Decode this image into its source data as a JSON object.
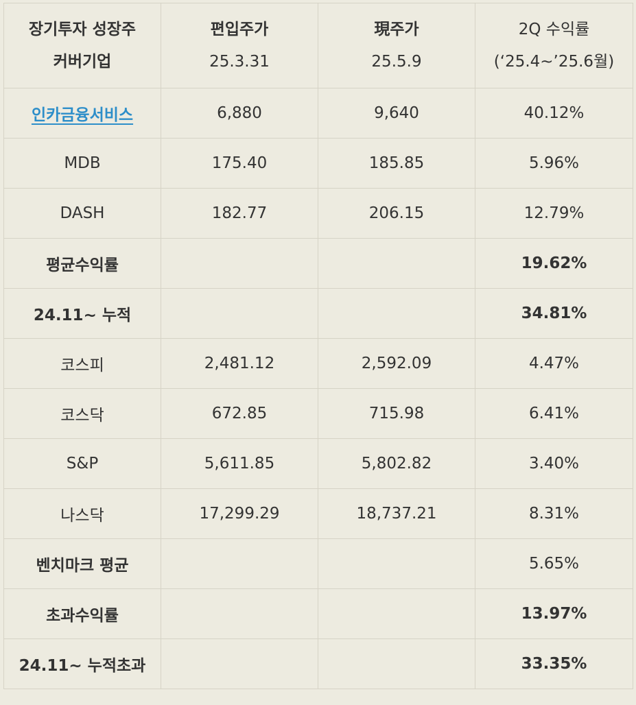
{
  "table": {
    "header": {
      "col1_line1": "장기투자 성장주",
      "col1_line2": "커버기업",
      "col2_line1": "편입주가",
      "col2_line2": "25.3.31",
      "col3_line1": "現주가",
      "col3_line2": "25.5.9",
      "col4_line1": "2Q 수익률",
      "col4_line2": "(‘25.4~’25.6월)"
    },
    "rows": [
      {
        "name": "인카금융서비스",
        "entry": "6,880",
        "current": "9,640",
        "return": "40.12%"
      },
      {
        "name": "MDB",
        "entry": "175.40",
        "current": "185.85",
        "return": "5.96%"
      },
      {
        "name": "DASH",
        "entry": "182.77",
        "current": "206.15",
        "return": "12.79%"
      },
      {
        "name": "평균수익률",
        "entry": "",
        "current": "",
        "return": "19.62%"
      },
      {
        "name": "24.11~ 누적",
        "entry": "",
        "current": "",
        "return": "34.81%"
      },
      {
        "name": "코스피",
        "entry": "2,481.12",
        "current": "2,592.09",
        "return": "4.47%"
      },
      {
        "name": "코스닥",
        "entry": "672.85",
        "current": "715.98",
        "return": "6.41%"
      },
      {
        "name": "S&P",
        "entry": "5,611.85",
        "current": "5,802.82",
        "return": "3.40%"
      },
      {
        "name": "나스닥",
        "entry": "17,299.29",
        "current": "18,737.21",
        "return": "8.31%"
      },
      {
        "name": "벤치마크 평균",
        "entry": "",
        "current": "",
        "return": "5.65%"
      },
      {
        "name": "초과수익률",
        "entry": "",
        "current": "",
        "return": "13.97%"
      },
      {
        "name": "24.11~ 누적초과",
        "entry": "",
        "current": "",
        "return": "33.35%"
      }
    ]
  },
  "colors": {
    "background": "#edebe0",
    "border": "#d6d3c6",
    "text": "#333333",
    "link": "#2d8ec9"
  }
}
